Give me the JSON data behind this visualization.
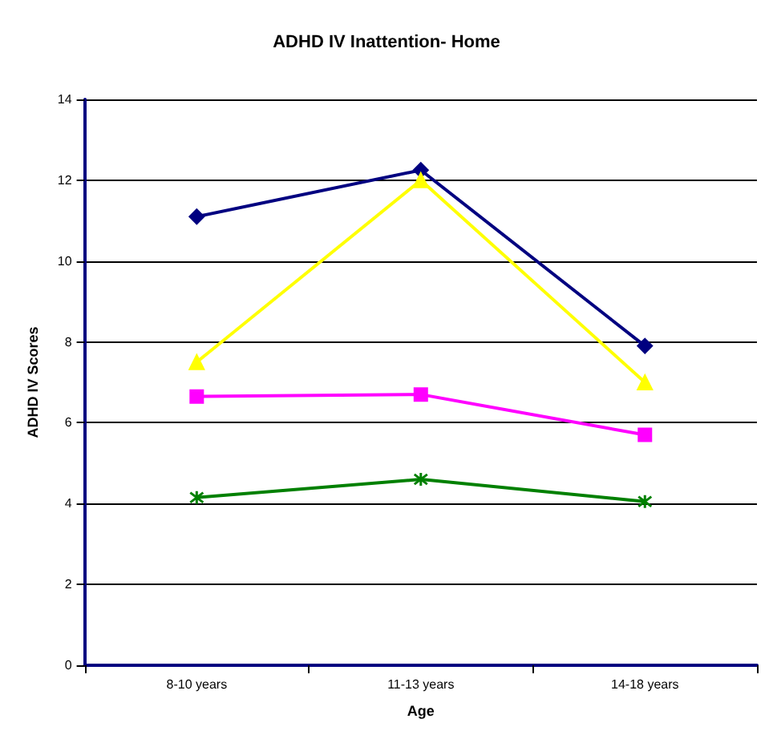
{
  "chart_data": {
    "type": "line",
    "title": "ADHD IV Inattention- Home",
    "xlabel": "Age",
    "ylabel": "ADHD IV Scores",
    "categories": [
      "8-10 years",
      "11-13 years",
      "14-18 years"
    ],
    "series": [
      {
        "color": "#000080",
        "marker": "diamond",
        "values": [
          11.1,
          12.25,
          7.9
        ]
      },
      {
        "color": "#ffff00",
        "marker": "triangle",
        "values": [
          7.5,
          12.0,
          7.0
        ]
      },
      {
        "color": "#ff00ff",
        "marker": "square",
        "values": [
          6.65,
          6.7,
          5.7
        ]
      },
      {
        "color": "#008000",
        "marker": "cross",
        "values": [
          4.15,
          4.6,
          4.05
        ]
      }
    ],
    "ylim": [
      0,
      14
    ],
    "yticks": [
      0,
      2,
      4,
      6,
      8,
      10,
      12,
      14
    ],
    "grid": "y"
  }
}
